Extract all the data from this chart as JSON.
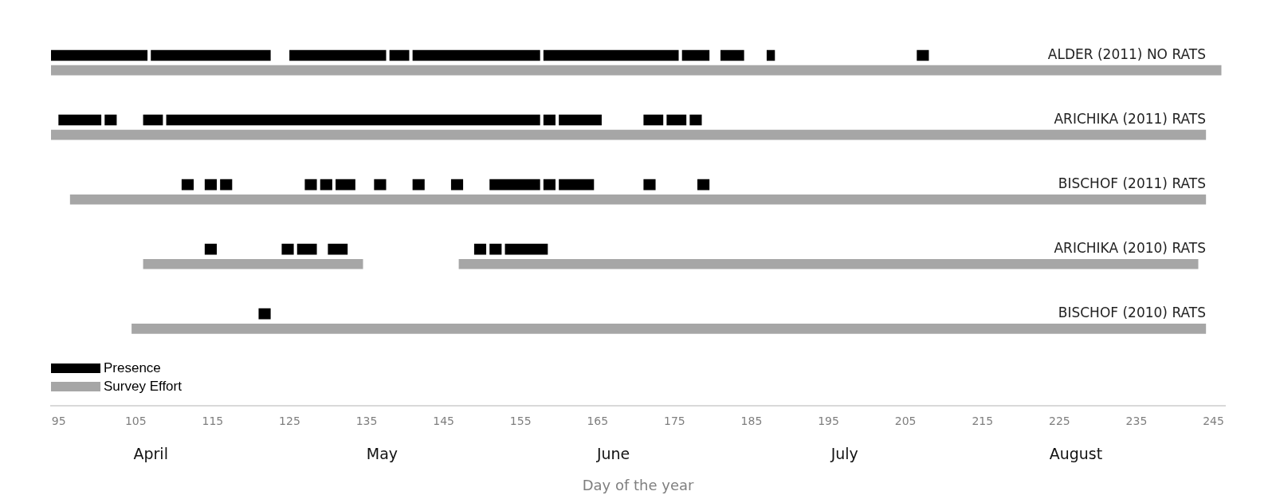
{
  "chart_data": {
    "type": "bar",
    "orientation": "horizontal",
    "xlabel": "Day of the year",
    "categories": [
      "ALDER (2011) NO RATS",
      "ARICHIKA (2011) RATS",
      "BISCHOF (2011) RATS",
      "ARICHIKA (2010) RATS",
      "BISCHOF (2010) RATS"
    ],
    "xlim": [
      94,
      246.5
    ],
    "xticks": [
      95,
      105,
      115,
      125,
      135,
      145,
      155,
      165,
      175,
      185,
      195,
      205,
      215,
      225,
      235,
      245
    ],
    "grid": false,
    "legend": "bottom left",
    "annotations": [
      "April",
      "May",
      "June",
      "July",
      "August"
    ],
    "series": [
      {
        "name": "Presence",
        "color": "#000000",
        "base": [
          94,
          95,
          111,
          114,
          121
        ],
        "values": [
          12.5,
          5.5,
          1.5,
          1.5,
          1.5
        ]
      },
      {
        "color": "#000000",
        "base": [
          107,
          101,
          114,
          124,
          null
        ],
        "values": [
          15.5,
          1.5,
          1.5,
          1.5,
          null
        ]
      },
      {
        "color": "#000000",
        "base": [
          125,
          106,
          116,
          126,
          null
        ],
        "values": [
          12.5,
          2.5,
          1.5,
          2.5,
          null
        ]
      },
      {
        "color": "#000000",
        "base": [
          138,
          109,
          127,
          130,
          null
        ],
        "values": [
          2.5,
          48.5,
          1.5,
          2.5,
          null
        ]
      },
      {
        "color": "#000000",
        "base": [
          141,
          158,
          129,
          149,
          null
        ],
        "values": [
          16.5,
          1.5,
          1.5,
          1.5,
          null
        ]
      },
      {
        "color": "#000000",
        "base": [
          158,
          160,
          131,
          151,
          null
        ],
        "values": [
          17.5,
          5.5,
          2.5,
          1.5,
          null
        ]
      },
      {
        "color": "#000000",
        "base": [
          176,
          171,
          136,
          153,
          null
        ],
        "values": [
          3.5,
          2.5,
          1.5,
          5.5,
          null
        ]
      },
      {
        "color": "#000000",
        "base": [
          181,
          174,
          141,
          null,
          null
        ],
        "values": [
          3,
          2.5,
          1.5,
          null,
          null
        ]
      },
      {
        "color": "#000000",
        "base": [
          187,
          177,
          146,
          null,
          null
        ],
        "values": [
          1,
          1.5,
          1.5,
          null,
          null
        ]
      },
      {
        "color": "#000000",
        "base": [
          206.5,
          null,
          151,
          null,
          null
        ],
        "values": [
          1.5,
          null,
          6.5,
          null,
          null
        ]
      },
      {
        "color": "#000000",
        "base": [
          null,
          null,
          158,
          null,
          null
        ],
        "values": [
          null,
          null,
          1.5,
          null,
          null
        ]
      },
      {
        "color": "#000000",
        "base": [
          null,
          null,
          160,
          null,
          null
        ],
        "values": [
          null,
          null,
          4.5,
          null,
          null
        ]
      },
      {
        "color": "#000000",
        "base": [
          null,
          null,
          171,
          null,
          null
        ],
        "values": [
          null,
          null,
          1.5,
          null,
          null
        ]
      },
      {
        "color": "#000000",
        "base": [
          null,
          null,
          178,
          null,
          null
        ],
        "values": [
          null,
          null,
          1.5,
          null,
          null
        ]
      },
      {
        "name": "Survey Effort",
        "color": "#a6a6a6",
        "base": [
          94,
          94,
          96.5,
          106,
          104.5
        ],
        "values": [
          152,
          150,
          147.5,
          28.5,
          139.5
        ]
      },
      {
        "color": "#a6a6a6",
        "base": [
          null,
          null,
          null,
          147,
          null
        ],
        "values": [
          null,
          null,
          null,
          96,
          null
        ]
      }
    ]
  }
}
